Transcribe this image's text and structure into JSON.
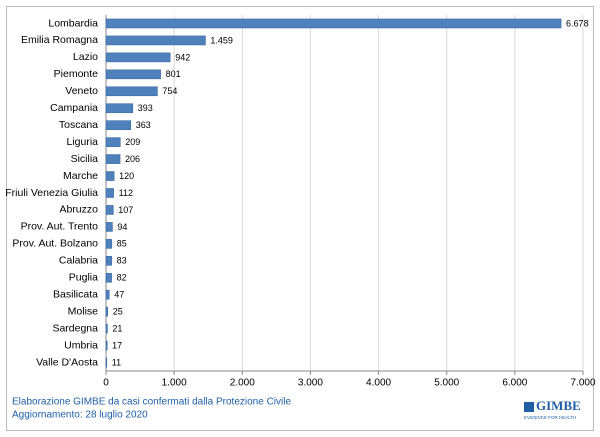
{
  "chart_data": {
    "type": "bar",
    "orientation": "horizontal",
    "categories": [
      "Lombardia",
      "Emilia Romagna",
      "Lazio",
      "Piemonte",
      "Veneto",
      "Campania",
      "Toscana",
      "Liguria",
      "Sicilia",
      "Marche",
      "Friuli Venezia Giulia",
      "Abruzzo",
      "Prov. Aut. Trento",
      "Prov. Aut. Bolzano",
      "Calabria",
      "Puglia",
      "Basilicata",
      "Molise",
      "Sardegna",
      "Umbria",
      "Valle D'Aosta"
    ],
    "values": [
      6678,
      1459,
      942,
      801,
      754,
      393,
      363,
      209,
      206,
      120,
      112,
      107,
      94,
      85,
      83,
      82,
      47,
      25,
      21,
      17,
      11
    ],
    "value_labels": [
      "6.678",
      "1.459",
      "942",
      "801",
      "754",
      "393",
      "363",
      "209",
      "206",
      "120",
      "112",
      "107",
      "94",
      "85",
      "83",
      "82",
      "47",
      "25",
      "21",
      "17",
      "11"
    ],
    "color": "#4f81bd",
    "xlim": [
      0,
      7000
    ],
    "xticks": [
      0,
      {
        "value": 1000,
        "label": "1.000"
      },
      {
        "value": 2000,
        "label": "2.000"
      },
      {
        "value": 3000,
        "label": "3.000"
      },
      {
        "value": 4000,
        "label": "4.000"
      },
      {
        "value": 5000,
        "label": "5.000"
      },
      {
        "value": 6000,
        "label": "6.000"
      },
      {
        "value": 7000,
        "label": "7.000"
      }
    ],
    "grid": true,
    "source": "Elaborazione GIMBE da casi confermati dalla Protezione Civile",
    "updated": "Aggiornamento: 28 luglio 2020",
    "logo": "GIMBE",
    "logo_tagline": "EVIDENCE FOR HEALTH"
  }
}
